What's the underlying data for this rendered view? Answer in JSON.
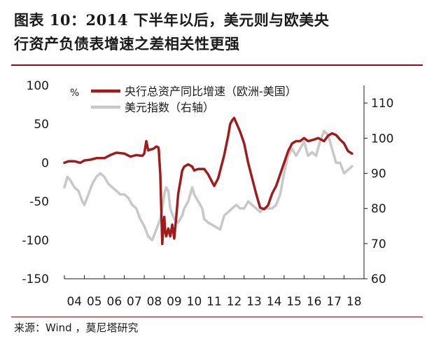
{
  "title_lines": [
    "图表 10：2014 下半年以后，美元则与欧美央",
    "行资产负债表增速之差相关性更强"
  ],
  "source": {
    "label": "来源：Wind ，莫尼塔研究"
  },
  "chart_data": {
    "type": "line",
    "unit_label": "%",
    "x_ticks": [
      "04",
      "05",
      "06",
      "07",
      "08",
      "09",
      "10",
      "11",
      "12",
      "13",
      "14",
      "15",
      "16",
      "17",
      "18"
    ],
    "x_domain": [
      2004.0,
      2019.0
    ],
    "left_axis": {
      "ylim": [
        -150,
        100
      ],
      "ticks": [
        "100",
        "50",
        "0",
        "-50",
        "-100",
        "-150"
      ],
      "tick_values": [
        100,
        50,
        0,
        -50,
        -100,
        -150
      ]
    },
    "right_axis": {
      "ylim": [
        60,
        115
      ],
      "ticks": [
        "110",
        "100",
        "90",
        "80",
        "70",
        "60"
      ],
      "tick_values": [
        110,
        100,
        90,
        80,
        70,
        60
      ]
    },
    "legend_position": "top",
    "series": [
      {
        "name": "央行总资产同比增速（欧洲-美国）",
        "axis": "left",
        "color": "#a01b1b",
        "x": [
          2004.0,
          2004.2,
          2004.5,
          2004.8,
          2005.0,
          2005.3,
          2005.6,
          2006.0,
          2006.3,
          2006.6,
          2007.0,
          2007.3,
          2007.6,
          2007.9,
          2008.0,
          2008.1,
          2008.2,
          2008.3,
          2008.45,
          2008.6,
          2008.7,
          2008.72,
          2008.8,
          2008.85,
          2008.9,
          2008.95,
          2009.0,
          2009.05,
          2009.1,
          2009.2,
          2009.3,
          2009.4,
          2009.5,
          2009.6,
          2009.7,
          2009.8,
          2009.9,
          2010.0,
          2010.2,
          2010.4,
          2010.5,
          2010.7,
          2011.0,
          2011.2,
          2011.5,
          2011.7,
          2012.0,
          2012.2,
          2012.3,
          2012.4,
          2012.5,
          2012.6,
          2012.8,
          2013.0,
          2013.2,
          2013.4,
          2013.6,
          2013.8,
          2014.0,
          2014.2,
          2014.4,
          2014.6,
          2014.8,
          2015.0,
          2015.2,
          2015.4,
          2015.6,
          2015.8,
          2016.0,
          2016.2,
          2016.5,
          2016.7,
          2017.0,
          2017.2,
          2017.4,
          2017.6,
          2017.8,
          2018.0,
          2018.2,
          2018.4
        ],
        "values": [
          0,
          2,
          2,
          0,
          3,
          4,
          6,
          6,
          10,
          13,
          12,
          8,
          10,
          9,
          12,
          28,
          16,
          17,
          18,
          21,
          20,
          18,
          -15,
          -60,
          -105,
          -85,
          -70,
          -90,
          -95,
          -85,
          -95,
          -80,
          -98,
          -70,
          -40,
          -25,
          -10,
          -5,
          -2,
          -5,
          -10,
          -8,
          -8,
          -15,
          -30,
          -20,
          10,
          35,
          50,
          55,
          58,
          52,
          40,
          25,
          0,
          -20,
          -40,
          -58,
          -60,
          -55,
          -40,
          -30,
          -15,
          0,
          15,
          25,
          28,
          28,
          32,
          28,
          30,
          32,
          28,
          35,
          38,
          36,
          30,
          25,
          15,
          12
        ]
      },
      {
        "name": "美元指数（右轴）",
        "axis": "right",
        "color": "#c8c8c8",
        "x": [
          2004.0,
          2004.15,
          2004.3,
          2004.5,
          2004.7,
          2004.9,
          2005.0,
          2005.2,
          2005.4,
          2005.6,
          2005.8,
          2006.0,
          2006.2,
          2006.4,
          2006.6,
          2006.8,
          2007.0,
          2007.2,
          2007.4,
          2007.6,
          2007.8,
          2008.0,
          2008.2,
          2008.4,
          2008.6,
          2008.8,
          2008.9,
          2009.0,
          2009.1,
          2009.2,
          2009.3,
          2009.5,
          2009.7,
          2009.9,
          2010.0,
          2010.2,
          2010.4,
          2010.5,
          2010.7,
          2010.9,
          2011.0,
          2011.2,
          2011.5,
          2011.8,
          2012.0,
          2012.2,
          2012.4,
          2012.6,
          2012.8,
          2013.0,
          2013.2,
          2013.4,
          2013.6,
          2013.8,
          2014.0,
          2014.2,
          2014.4,
          2014.6,
          2014.8,
          2015.0,
          2015.2,
          2015.4,
          2015.6,
          2015.8,
          2016.0,
          2016.2,
          2016.4,
          2016.6,
          2016.8,
          2017.0,
          2017.2,
          2017.4,
          2017.6,
          2017.8,
          2018.0,
          2018.2,
          2018.4
        ],
        "values": [
          86,
          89,
          88,
          86,
          85,
          82,
          81,
          84,
          87,
          89,
          90,
          89,
          87,
          86,
          85,
          84,
          84,
          83,
          81,
          80,
          77,
          75,
          72,
          71,
          74,
          77,
          80,
          84,
          86,
          85,
          80,
          77,
          76,
          78,
          80,
          82,
          86,
          84,
          82,
          80,
          77,
          76,
          75,
          74,
          78,
          79,
          80,
          81,
          80,
          80,
          82,
          81,
          80,
          79,
          80,
          80,
          80,
          81,
          84,
          90,
          95,
          97,
          95,
          97,
          99,
          95,
          96,
          95,
          99,
          102,
          101,
          97,
          93,
          93,
          90,
          91,
          92
        ]
      }
    ]
  }
}
